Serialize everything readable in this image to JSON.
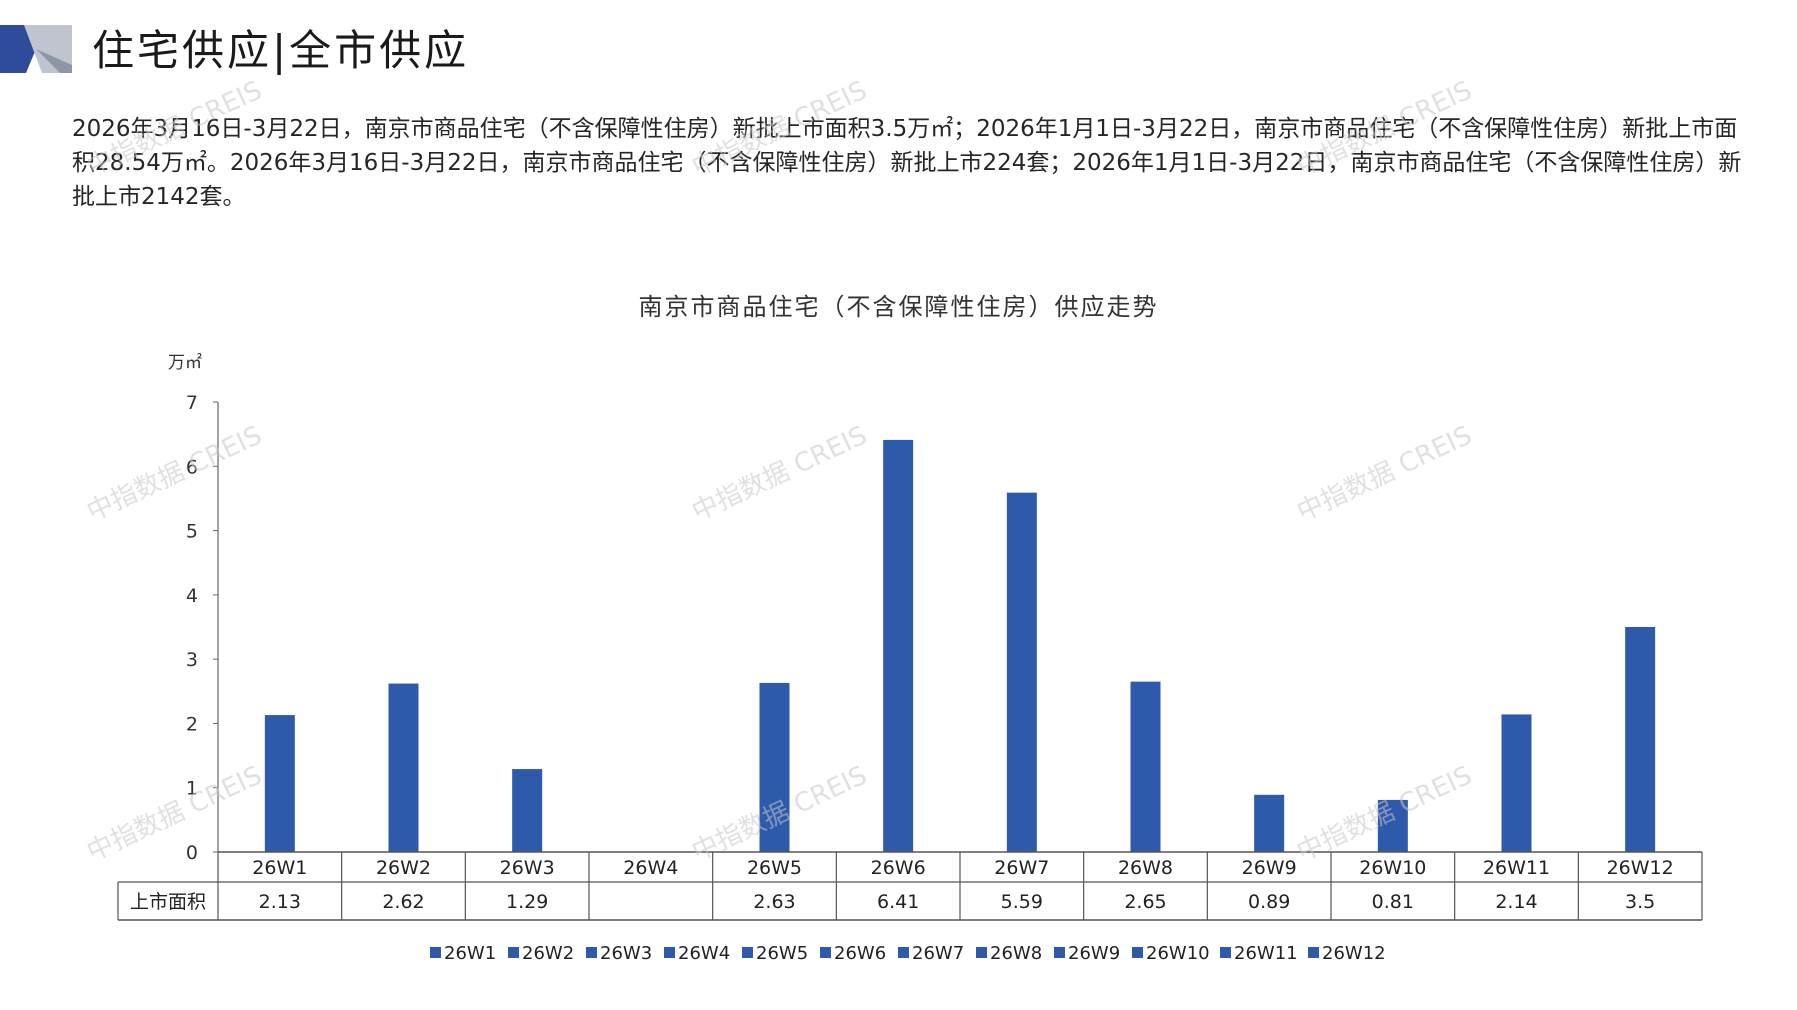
{
  "header": {
    "title": "住宅供应|全市供应"
  },
  "summary": {
    "text": "2026年3月16日-3月22日，南京市商品住宅（不含保障性住房）新批上市面积3.5万㎡；2026年1月1日-3月22日，南京市商品住宅（不含保障性住房）新批上市面积28.54万㎡。2026年3月16日-3月22日，南京市商品住宅（不含保障性住房）新批上市224套；2026年1月1日-3月22日，南京市商品住宅（不含保障性住房）新批上市2142套。"
  },
  "watermark": {
    "text": "中指数据 CREIS"
  },
  "colors": {
    "bar": "#2E5AAC",
    "axis": "#666666",
    "deco_dark": "#2E4C9B",
    "deco_light": "#BFC4CF"
  },
  "chart_data": {
    "type": "bar",
    "title": "南京市商品住宅（不含保障性住房）供应走势",
    "ylabel": "万㎡",
    "ylim": [
      0,
      7
    ],
    "yticks": [
      "0",
      "1",
      "2",
      "3",
      "4",
      "5",
      "6",
      "7"
    ],
    "categories": [
      "26W1",
      "26W2",
      "26W3",
      "26W4",
      "26W5",
      "26W6",
      "26W7",
      "26W8",
      "26W9",
      "26W10",
      "26W11",
      "26W12"
    ],
    "series": [
      {
        "name": "上市面积",
        "values": [
          2.13,
          2.62,
          1.29,
          null,
          2.63,
          6.41,
          5.59,
          2.65,
          0.89,
          0.81,
          2.14,
          3.5
        ]
      }
    ],
    "table_labels": [
      "2.13",
      "2.62",
      "1.29",
      "",
      "2.63",
      "6.41",
      "5.59",
      "2.65",
      "0.89",
      "0.81",
      "2.14",
      "3.5"
    ],
    "legend": [
      "26W1",
      "26W2",
      "26W3",
      "26W4",
      "26W5",
      "26W6",
      "26W7",
      "26W8",
      "26W9",
      "26W10",
      "26W11",
      "26W12"
    ],
    "legend_position": "bottom"
  }
}
